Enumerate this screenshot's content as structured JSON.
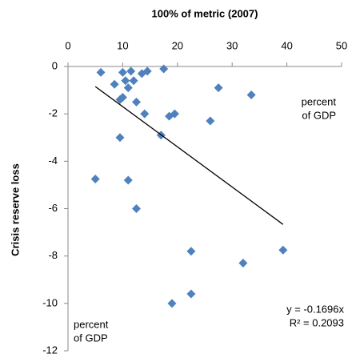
{
  "chart_data": {
    "type": "scatter",
    "title": "100% of metric (2007)",
    "y_label": "Crisis reserve loss",
    "x": [
      6,
      10,
      11.5,
      17.5,
      14.5,
      13.5,
      12,
      10.5,
      8.5,
      11,
      27.5,
      33.5,
      26,
      19.5,
      18.5,
      14,
      12.5,
      10,
      9.5,
      17,
      9.5,
      5,
      11,
      12.5,
      22.5,
      32,
      39.3,
      22.5,
      19
    ],
    "values": [
      -0.25,
      -0.25,
      -0.2,
      -0.1,
      -0.2,
      -0.3,
      -0.6,
      -0.6,
      -0.75,
      -0.9,
      -0.9,
      -1.2,
      -2.3,
      -2.0,
      -2.1,
      -2.0,
      -1.5,
      -1.3,
      -1.4,
      -2.9,
      -3.0,
      -4.75,
      -4.8,
      -6.0,
      -7.8,
      -8.3,
      -7.75,
      -9.6,
      -10.0
    ],
    "color": "#4f81bd",
    "xlim": [
      0,
      50
    ],
    "xticks": [
      0,
      10,
      20,
      30,
      40,
      50
    ],
    "ylim": [
      -12,
      0
    ],
    "yticks": [
      0,
      -2,
      -4,
      -6,
      -8,
      -10,
      -12
    ],
    "trendline": {
      "slope": -0.1696,
      "label": "y = -0.1696x",
      "r2_label": "R² = 0.2093",
      "color": "#000000"
    },
    "annotations": [
      {
        "lines": [
          "percent",
          "of GDP"
        ]
      },
      {
        "lines": [
          "percent",
          "of GDP"
        ]
      }
    ]
  }
}
